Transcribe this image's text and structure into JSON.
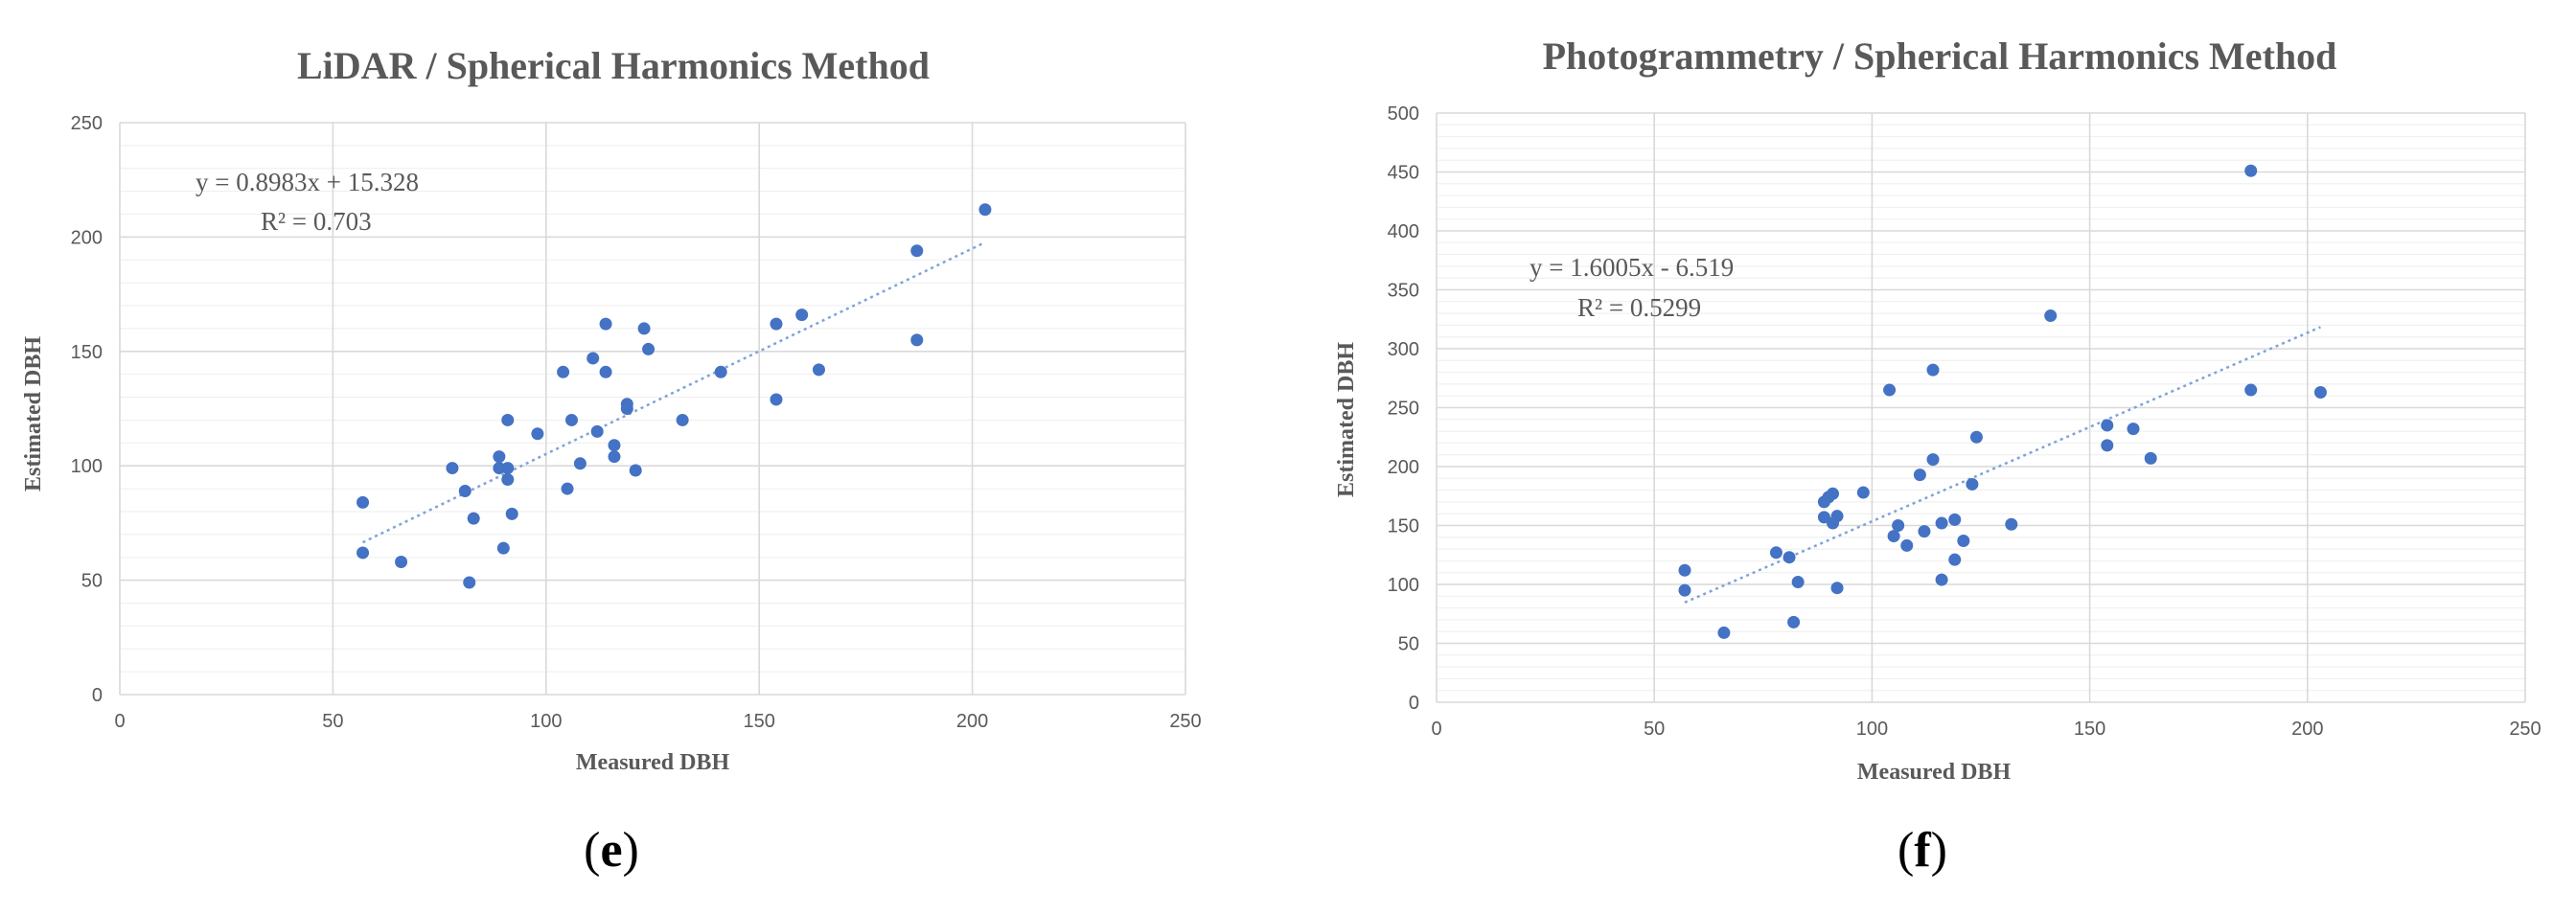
{
  "colors": {
    "points": "#4472c4",
    "trendline": "#7fa3d8",
    "grid": "#d9d9d9",
    "text": "#595959"
  },
  "chart_data": [
    {
      "id": "e",
      "type": "scatter",
      "title": "LiDAR / Spherical Harmonics Method",
      "xlabel": "Measured DBH",
      "ylabel": "Estimated DBH",
      "xlim": [
        0,
        250
      ],
      "ylim": [
        0,
        250
      ],
      "xticks": [
        "0",
        "50",
        "100",
        "150",
        "200",
        "250"
      ],
      "yticks": [
        "0",
        "50",
        "100",
        "150",
        "200",
        "250"
      ],
      "grid": true,
      "equation": "y = 0.8983x + 15.328",
      "r2": "R² = 0.703",
      "trendline": {
        "slope": 0.8983,
        "intercept": 15.328,
        "x_range": [
          57,
          203
        ]
      },
      "caption_open": "(",
      "caption_letter": "e",
      "caption_close": ")",
      "points": [
        [
          57,
          84
        ],
        [
          57,
          62
        ],
        [
          66,
          58
        ],
        [
          78,
          99
        ],
        [
          81,
          89
        ],
        [
          83,
          77
        ],
        [
          82,
          49
        ],
        [
          89,
          104
        ],
        [
          89,
          99
        ],
        [
          90,
          64
        ],
        [
          91,
          94
        ],
        [
          91,
          99
        ],
        [
          91,
          120
        ],
        [
          92,
          79
        ],
        [
          98,
          114
        ],
        [
          104,
          141
        ],
        [
          105,
          90
        ],
        [
          106,
          120
        ],
        [
          108,
          101
        ],
        [
          111,
          147
        ],
        [
          112,
          115
        ],
        [
          114,
          162
        ],
        [
          114,
          141
        ],
        [
          116,
          109
        ],
        [
          116,
          104
        ],
        [
          119,
          127
        ],
        [
          119,
          125
        ],
        [
          121,
          98
        ],
        [
          123,
          160
        ],
        [
          124,
          151
        ],
        [
          132,
          120
        ],
        [
          141,
          141
        ],
        [
          154,
          162
        ],
        [
          154,
          129
        ],
        [
          160,
          166
        ],
        [
          164,
          142
        ],
        [
          187,
          194
        ],
        [
          187,
          155
        ],
        [
          203,
          212
        ]
      ]
    },
    {
      "id": "f",
      "type": "scatter",
      "title": "Photogrammetry / Spherical Harmonics Method",
      "xlabel": "Measured DBH",
      "ylabel": "Estimated DBH",
      "xlim": [
        0,
        250
      ],
      "ylim": [
        0,
        500
      ],
      "xticks": [
        "0",
        "50",
        "100",
        "150",
        "200",
        "250"
      ],
      "yticks": [
        "0",
        "50",
        "100",
        "150",
        "200",
        "250",
        "300",
        "350",
        "400",
        "450",
        "500"
      ],
      "grid": true,
      "equation": "y = 1.6005x - 6.519",
      "r2": "R² = 0.5299",
      "trendline": {
        "slope": 1.6005,
        "intercept": -6.519,
        "x_range": [
          57,
          203
        ]
      },
      "caption_open": "(",
      "caption_letter": "f",
      "caption_close": ")",
      "points": [
        [
          57,
          112
        ],
        [
          57,
          95
        ],
        [
          66,
          59
        ],
        [
          78,
          127
        ],
        [
          81,
          123
        ],
        [
          82,
          68
        ],
        [
          83,
          102
        ],
        [
          89,
          157
        ],
        [
          89,
          170
        ],
        [
          90,
          174
        ],
        [
          91,
          152
        ],
        [
          91,
          177
        ],
        [
          92,
          158
        ],
        [
          92,
          97
        ],
        [
          98,
          178
        ],
        [
          104,
          265
        ],
        [
          105,
          141
        ],
        [
          106,
          150
        ],
        [
          108,
          133
        ],
        [
          111,
          193
        ],
        [
          112,
          145
        ],
        [
          114,
          282
        ],
        [
          114,
          206
        ],
        [
          116,
          152
        ],
        [
          116,
          104
        ],
        [
          119,
          155
        ],
        [
          119,
          121
        ],
        [
          121,
          137
        ],
        [
          123,
          185
        ],
        [
          124,
          225
        ],
        [
          132,
          151
        ],
        [
          141,
          328
        ],
        [
          154,
          235
        ],
        [
          154,
          218
        ],
        [
          160,
          232
        ],
        [
          164,
          207
        ],
        [
          187,
          451
        ],
        [
          187,
          265
        ],
        [
          203,
          263
        ]
      ]
    }
  ]
}
